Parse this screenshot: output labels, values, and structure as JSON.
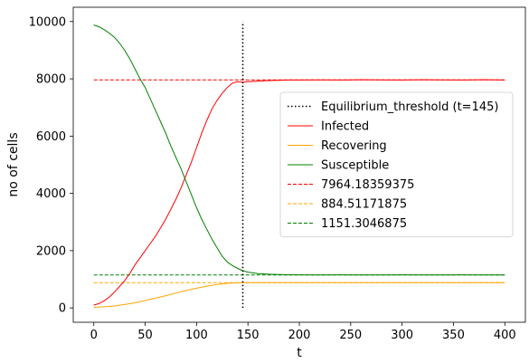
{
  "chart_data": {
    "type": "line",
    "xlabel": "t",
    "ylabel": "no of cells",
    "xlim": [
      -20,
      420
    ],
    "ylim": [
      -500,
      10500
    ],
    "xticks": [
      0,
      50,
      100,
      150,
      200,
      250,
      300,
      350,
      400
    ],
    "yticks": [
      0,
      2000,
      4000,
      6000,
      8000,
      10000
    ],
    "grid": false,
    "legend_position": "right",
    "vline": {
      "name": "Equilibrium_threshold (t=145)",
      "x": 145,
      "y_range": [
        0,
        10000
      ],
      "color": "#000000",
      "style": "dotted"
    },
    "series": [
      {
        "name": "Infected",
        "color": "#ff0000",
        "x": [
          0,
          5,
          10,
          15,
          20,
          25,
          30,
          35,
          40,
          45,
          50,
          55,
          60,
          65,
          70,
          75,
          80,
          85,
          90,
          95,
          100,
          105,
          110,
          115,
          120,
          125,
          130,
          135,
          140,
          145,
          150,
          160,
          170,
          180,
          190,
          200,
          220,
          240,
          260,
          280,
          300,
          320,
          340,
          360,
          380,
          400
        ],
        "y": [
          100,
          150,
          250,
          380,
          550,
          750,
          950,
          1200,
          1500,
          1750,
          2000,
          2250,
          2500,
          2800,
          3100,
          3450,
          3800,
          4200,
          4650,
          5100,
          5600,
          6100,
          6550,
          6950,
          7250,
          7500,
          7700,
          7850,
          7900,
          7880,
          7900,
          7920,
          7940,
          7950,
          7960,
          7960,
          7965,
          7960,
          7970,
          7965,
          7960,
          7970,
          7965,
          7960,
          7970,
          7960
        ]
      },
      {
        "name": "Recovering",
        "color": "#ffa500",
        "x": [
          0,
          10,
          20,
          30,
          40,
          50,
          60,
          70,
          80,
          90,
          100,
          110,
          120,
          130,
          140,
          145,
          150,
          170,
          200,
          250,
          300,
          350,
          400
        ],
        "y": [
          20,
          40,
          70,
          120,
          180,
          260,
          340,
          430,
          520,
          610,
          690,
          760,
          820,
          860,
          880,
          885,
          885,
          885,
          885,
          884,
          885,
          884,
          885
        ]
      },
      {
        "name": "Susceptible",
        "color": "#008000",
        "x": [
          0,
          5,
          10,
          15,
          20,
          25,
          30,
          35,
          40,
          45,
          50,
          55,
          60,
          65,
          70,
          75,
          80,
          85,
          90,
          95,
          100,
          105,
          110,
          115,
          120,
          125,
          130,
          135,
          140,
          145,
          150,
          160,
          170,
          180,
          190,
          200,
          220,
          240,
          260,
          280,
          300,
          320,
          340,
          360,
          380,
          400
        ],
        "y": [
          9880,
          9820,
          9720,
          9600,
          9450,
          9250,
          9000,
          8700,
          8350,
          8000,
          7700,
          7300,
          6900,
          6500,
          6100,
          5650,
          5250,
          4850,
          4400,
          3950,
          3500,
          3100,
          2750,
          2400,
          2100,
          1800,
          1600,
          1480,
          1380,
          1300,
          1250,
          1200,
          1180,
          1170,
          1160,
          1155,
          1150,
          1155,
          1150,
          1150,
          1155,
          1150,
          1150,
          1155,
          1150,
          1150
        ]
      }
    ],
    "hlines": [
      {
        "name": "7964.18359375",
        "y": 7964.18359375,
        "x_range": [
          0,
          400
        ],
        "color": "#ff0000",
        "style": "dashed"
      },
      {
        "name": "884.51171875",
        "y": 884.51171875,
        "x_range": [
          0,
          400
        ],
        "color": "#ffa500",
        "style": "dashed"
      },
      {
        "name": "1151.3046875",
        "y": 1151.3046875,
        "x_range": [
          0,
          400
        ],
        "color": "#008000",
        "style": "dashed"
      }
    ]
  }
}
